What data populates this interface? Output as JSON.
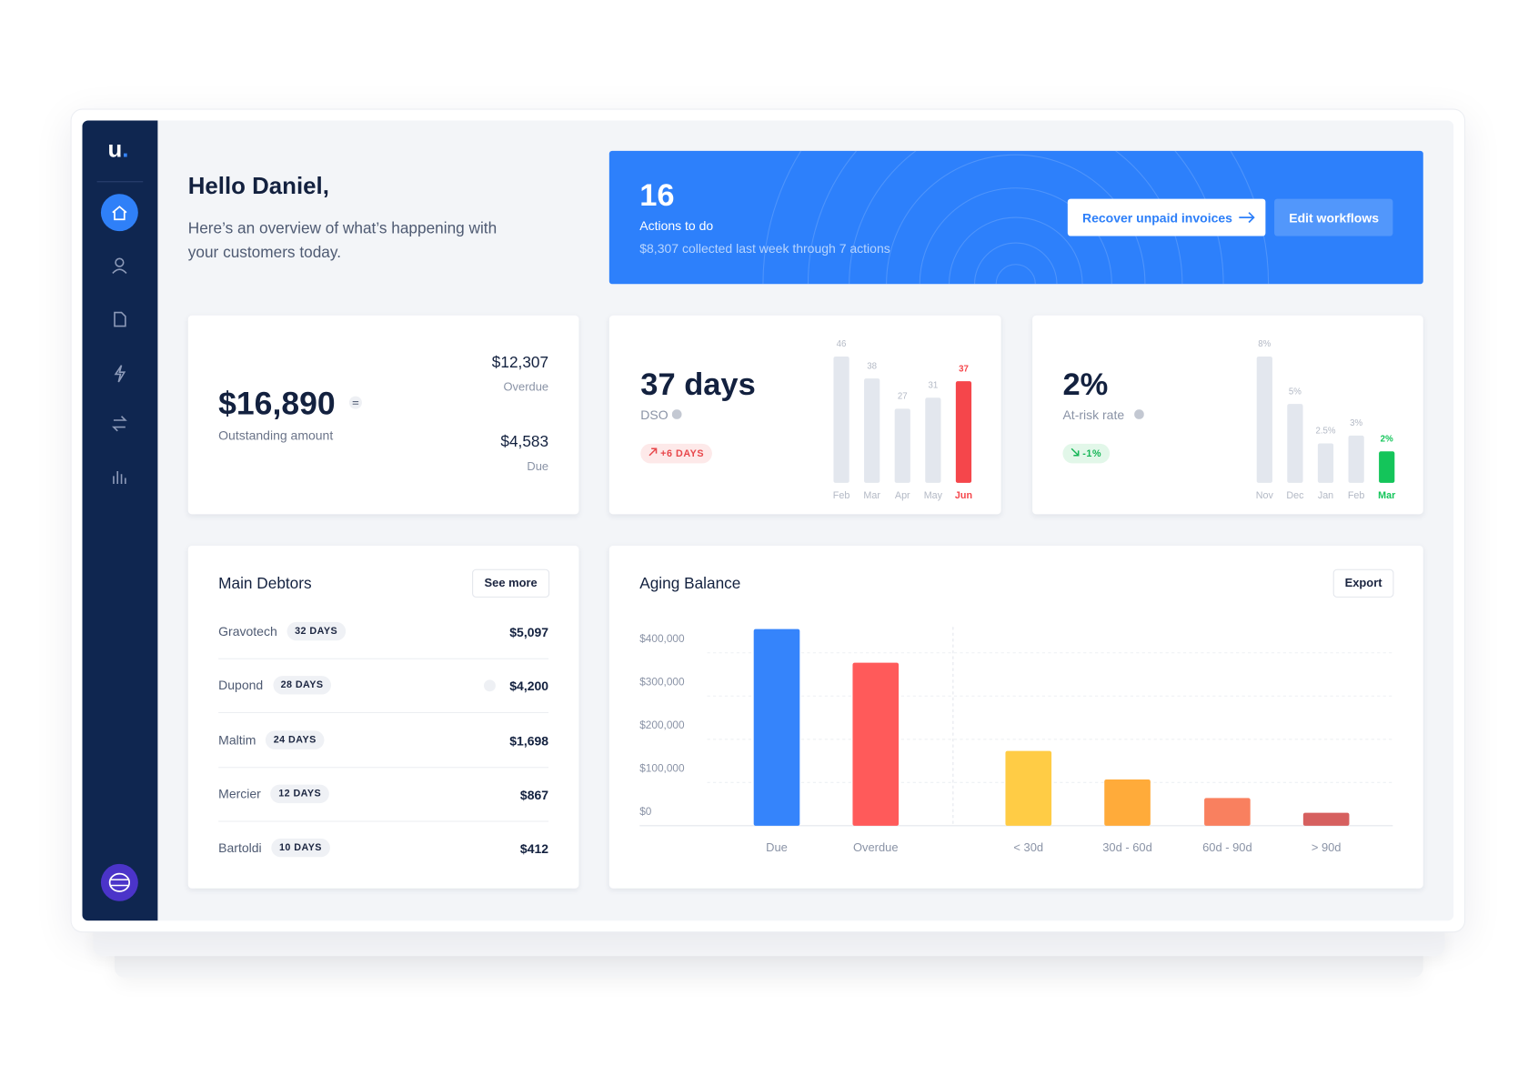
{
  "sidebar": {
    "logo": "u",
    "logo_dot": "."
  },
  "greeting": {
    "title": "Hello Daniel,",
    "subtitle": "Here’s an overview of what’s happening with your customers today."
  },
  "actions_banner": {
    "count": "16",
    "label": "Actions to do",
    "note": "$8,307 collected last week through 7 actions",
    "buttons": [
      "Recover unpaid invoices",
      "Edit workflows"
    ]
  },
  "outstanding": {
    "amount": "$16,890",
    "label": "Outstanding amount",
    "overdue_amount": "$12,307",
    "overdue_label": "Overdue",
    "due_amount": "$4,583",
    "due_label": "Due"
  },
  "dso": {
    "value": "37 days",
    "label": "DSO",
    "badge": "+6 DAYS",
    "chart": {
      "type": "bar",
      "categories": [
        "Feb",
        "Mar",
        "Apr",
        "May",
        "Jun"
      ],
      "values": [
        46,
        38,
        27,
        31,
        37
      ],
      "ylim": [
        0,
        46
      ],
      "color": "#e3e7ee",
      "colors": [
        "#e3e7ee",
        "#e3e7ee",
        "#e3e7ee",
        "#e3e7ee",
        "#f5464b"
      ]
    }
  },
  "risk": {
    "value": "2%",
    "label": "At-risk rate",
    "badge": "-1%",
    "chart": {
      "type": "bar",
      "categories": [
        "Nov",
        "Dec",
        "Jan",
        "Feb",
        "Mar"
      ],
      "values": [
        8,
        5,
        2.5,
        3,
        2
      ],
      "value_labels": [
        "8%",
        "5%",
        "2.5%",
        "3%",
        "2%"
      ],
      "ylim": [
        0,
        8
      ],
      "color": "#e3e7ee",
      "colors": [
        "#e3e7ee",
        "#e3e7ee",
        "#e3e7ee",
        "#e3e7ee",
        "#14c55a"
      ]
    }
  },
  "debtors": {
    "title": "Main Debtors",
    "button": "See more",
    "rows": [
      {
        "name": "Gravotech",
        "days": "32 DAYS",
        "amount": "$5,097"
      },
      {
        "name": "Dupond",
        "days": "28 DAYS",
        "amount": "$4,200"
      },
      {
        "name": "Maltim",
        "days": "24 DAYS",
        "amount": "$1,698"
      },
      {
        "name": "Mercier",
        "days": "12 DAYS",
        "amount": "$867"
      },
      {
        "name": "Bartoldi",
        "days": "10 DAYS",
        "amount": "$412"
      }
    ]
  },
  "aging": {
    "title": "Aging Balance",
    "button": "Export",
    "chart": {
      "type": "bar",
      "categories": [
        "Due",
        "Overdue",
        "< 30d",
        "30d - 60d",
        "60d - 90d",
        "> 90d"
      ],
      "values": [
        455000,
        377000,
        173000,
        107000,
        64000,
        30000
      ],
      "colors": [
        "#3584fb",
        "#ff5a5a",
        "#ffcc45",
        "#ffab3a",
        "#f9805f",
        "#d6605f"
      ],
      "ylim": [
        0,
        460000
      ],
      "yticks": [
        {
          "value": 0,
          "label": "$0"
        },
        {
          "value": 100000,
          "label": "$100,000"
        },
        {
          "value": 200000,
          "label": "$200,000"
        },
        {
          "value": 300000,
          "label": "$300,000"
        },
        {
          "value": 400000,
          "label": "$400,000"
        }
      ],
      "grid": true
    }
  }
}
